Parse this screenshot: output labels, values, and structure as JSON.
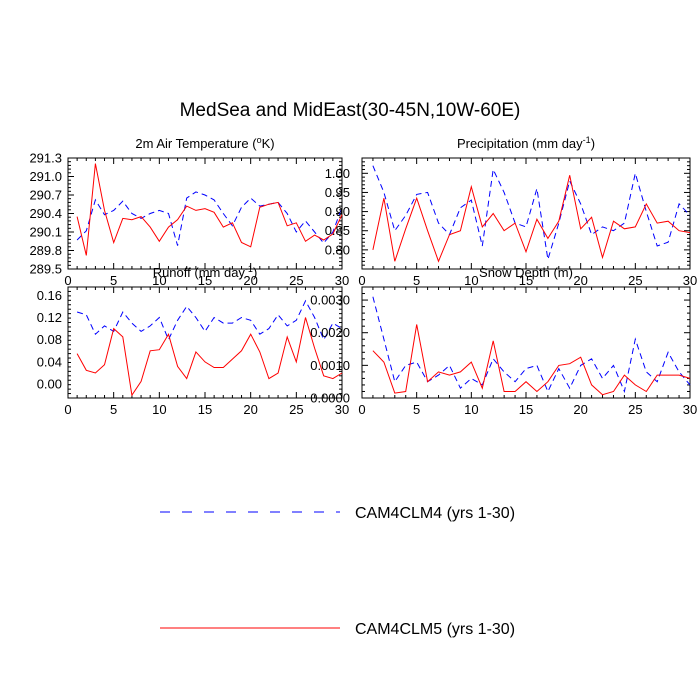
{
  "title": "MedSea and MidEast(30-45N,10W-60E)",
  "colors": {
    "clm4": "#0000ff",
    "clm5": "#ff0000",
    "axis": "#000000"
  },
  "legend": [
    {
      "name": "CAM4CLM4 (yrs 1-30)",
      "series": "clm4",
      "style": "dashed"
    },
    {
      "name": "CAM4CLM5 (yrs 1-30)",
      "series": "clm5",
      "style": "solid"
    }
  ],
  "chart_data": [
    {
      "type": "line",
      "title": "2m Air Temperature (°K)",
      "title_base": "2m Air Temperature (",
      "title_sup": "o",
      "title_tail": "K)",
      "xlabel": "",
      "ylabel": "",
      "xlim": [
        0,
        30
      ],
      "ylim": [
        289.5,
        291.3
      ],
      "xticks": [
        0,
        5,
        10,
        15,
        20,
        25,
        30
      ],
      "yticks": [
        289.5,
        289.8,
        290.1,
        290.4,
        290.7,
        291.0,
        291.3
      ],
      "ytick_labels": [
        "289.5",
        "289.8",
        "290.1",
        "290.4",
        "290.7",
        "291.0",
        "291.3"
      ],
      "x": [
        1,
        2,
        3,
        4,
        5,
        6,
        7,
        8,
        9,
        10,
        11,
        12,
        13,
        14,
        15,
        16,
        17,
        18,
        19,
        20,
        21,
        22,
        23,
        24,
        25,
        26,
        27,
        28,
        29,
        30
      ],
      "series": [
        {
          "name": "CAM4CLM4 (yrs 1-30)",
          "key": "clm4",
          "values": [
            289.97,
            290.12,
            290.62,
            290.38,
            290.45,
            290.6,
            290.4,
            290.32,
            290.4,
            290.45,
            290.4,
            289.88,
            290.65,
            290.75,
            290.7,
            290.62,
            290.4,
            290.2,
            290.5,
            290.65,
            290.52,
            290.55,
            290.58,
            290.4,
            290.1,
            290.28,
            290.1,
            289.92,
            290.1,
            290.5
          ]
        },
        {
          "name": "CAM4CLM5 (yrs 1-30)",
          "key": "clm5",
          "values": [
            290.35,
            289.72,
            291.21,
            290.45,
            289.93,
            290.32,
            290.3,
            290.35,
            290.18,
            289.95,
            290.18,
            290.3,
            290.52,
            290.45,
            290.48,
            290.42,
            290.18,
            290.25,
            289.93,
            289.86,
            290.5,
            290.55,
            290.58,
            290.2,
            290.25,
            289.95,
            290.05,
            289.97,
            290.07,
            290.38
          ]
        }
      ]
    },
    {
      "type": "line",
      "title": "Precipitation (mm day⁻¹)",
      "title_base": "Precipitation (mm day",
      "title_sup": "-1",
      "title_tail": ")",
      "xlabel": "",
      "ylabel": "",
      "xlim": [
        0,
        30
      ],
      "ylim": [
        0.75,
        1.04
      ],
      "xticks": [
        0,
        5,
        10,
        15,
        20,
        25,
        30
      ],
      "yticks": [
        0.8,
        0.85,
        0.9,
        0.95,
        1.0
      ],
      "ytick_labels": [
        "0.80",
        "0.85",
        "0.90",
        "0.95",
        "1.00"
      ],
      "x": [
        1,
        2,
        3,
        4,
        5,
        6,
        7,
        8,
        9,
        10,
        11,
        12,
        13,
        14,
        15,
        16,
        17,
        18,
        19,
        20,
        21,
        22,
        23,
        24,
        25,
        26,
        27,
        28,
        29,
        30
      ],
      "series": [
        {
          "name": "CAM4CLM4 (yrs 1-30)",
          "key": "clm4",
          "values": [
            1.02,
            0.95,
            0.85,
            0.89,
            0.945,
            0.95,
            0.87,
            0.84,
            0.91,
            0.93,
            0.81,
            1.01,
            0.95,
            0.87,
            0.86,
            0.96,
            0.775,
            0.87,
            0.98,
            0.92,
            0.84,
            0.86,
            0.85,
            0.87,
            1.0,
            0.9,
            0.81,
            0.82,
            0.92,
            0.89
          ]
        },
        {
          "name": "CAM4CLM5 (yrs 1-30)",
          "key": "clm5",
          "values": [
            0.8,
            0.935,
            0.77,
            0.855,
            0.935,
            0.85,
            0.77,
            0.84,
            0.85,
            0.965,
            0.86,
            0.895,
            0.85,
            0.87,
            0.795,
            0.88,
            0.83,
            0.875,
            0.995,
            0.855,
            0.885,
            0.78,
            0.875,
            0.855,
            0.86,
            0.92,
            0.87,
            0.875,
            0.85,
            0.845
          ]
        }
      ]
    },
    {
      "type": "line",
      "title": "Runoff (mm day⁻¹)",
      "title_base": "Runoff (mm day",
      "title_sup": "-1",
      "title_tail": ")",
      "xlabel": "",
      "ylabel": "",
      "xlim": [
        0,
        30
      ],
      "ylim": [
        -0.025,
        0.175
      ],
      "xticks": [
        0,
        5,
        10,
        15,
        20,
        25,
        30
      ],
      "yticks": [
        0.0,
        0.04,
        0.08,
        0.12,
        0.16
      ],
      "ytick_labels": [
        "0.00",
        "0.04",
        "0.08",
        "0.12",
        "0.16"
      ],
      "x": [
        1,
        2,
        3,
        4,
        5,
        6,
        7,
        8,
        9,
        10,
        11,
        12,
        13,
        14,
        15,
        16,
        17,
        18,
        19,
        20,
        21,
        22,
        23,
        24,
        25,
        26,
        27,
        28,
        29,
        30
      ],
      "series": [
        {
          "name": "CAM4CLM4 (yrs 1-30)",
          "key": "clm4",
          "values": [
            0.13,
            0.125,
            0.09,
            0.105,
            0.095,
            0.13,
            0.11,
            0.095,
            0.105,
            0.12,
            0.08,
            0.115,
            0.14,
            0.12,
            0.095,
            0.12,
            0.11,
            0.11,
            0.12,
            0.115,
            0.09,
            0.1,
            0.125,
            0.105,
            0.115,
            0.15,
            0.12,
            0.08,
            0.11,
            0.1
          ]
        },
        {
          "name": "CAM4CLM5 (yrs 1-30)",
          "key": "clm5",
          "values": [
            0.055,
            0.025,
            0.02,
            0.035,
            0.1,
            0.085,
            -0.02,
            0.005,
            0.06,
            0.062,
            0.09,
            0.032,
            0.01,
            0.058,
            0.04,
            0.03,
            0.03,
            0.045,
            0.06,
            0.09,
            0.058,
            0.01,
            0.02,
            0.085,
            0.04,
            0.12,
            0.065,
            0.015,
            0.01,
            0.02
          ]
        }
      ]
    },
    {
      "type": "line",
      "title": "Snow Depth (m)",
      "title_base": "Snow Depth (m)",
      "title_sup": "",
      "title_tail": "",
      "xlabel": "",
      "ylabel": "",
      "xlim": [
        0,
        30
      ],
      "ylim": [
        0.0,
        0.0034
      ],
      "xticks": [
        0,
        5,
        10,
        15,
        20,
        25,
        30
      ],
      "yticks": [
        0.0,
        0.001,
        0.002,
        0.003
      ],
      "ytick_labels": [
        "0.0000",
        "0.0010",
        "0.0020",
        "0.0030"
      ],
      "x": [
        1,
        2,
        3,
        4,
        5,
        6,
        7,
        8,
        9,
        10,
        11,
        12,
        13,
        14,
        15,
        16,
        17,
        18,
        19,
        20,
        21,
        22,
        23,
        24,
        25,
        26,
        27,
        28,
        29,
        30
      ],
      "series": [
        {
          "name": "CAM4CLM4 (yrs 1-30)",
          "key": "clm4",
          "values": [
            0.0031,
            0.0018,
            0.0005,
            0.001,
            0.0011,
            0.0005,
            0.0007,
            0.001,
            0.0003,
            0.0006,
            0.0004,
            0.0012,
            0.0008,
            0.0005,
            0.0009,
            0.001,
            0.0002,
            0.0009,
            0.0003,
            0.001,
            0.0012,
            0.0006,
            0.001,
            0.0002,
            0.0018,
            0.0008,
            0.0005,
            0.0014,
            0.0008,
            0.0004
          ]
        },
        {
          "name": "CAM4CLM5 (yrs 1-30)",
          "key": "clm5",
          "values": [
            0.00145,
            0.0011,
            0.00015,
            0.0002,
            0.00225,
            0.0005,
            0.0008,
            0.0007,
            0.0008,
            0.0011,
            0.0003,
            0.00175,
            0.0002,
            0.0002,
            0.0005,
            0.0002,
            0.0005,
            0.001,
            0.00105,
            0.00125,
            0.0004,
            0.0001,
            0.0002,
            0.0007,
            0.0004,
            0.0002,
            0.0007,
            0.0007,
            0.0007,
            0.0006
          ]
        }
      ]
    }
  ]
}
